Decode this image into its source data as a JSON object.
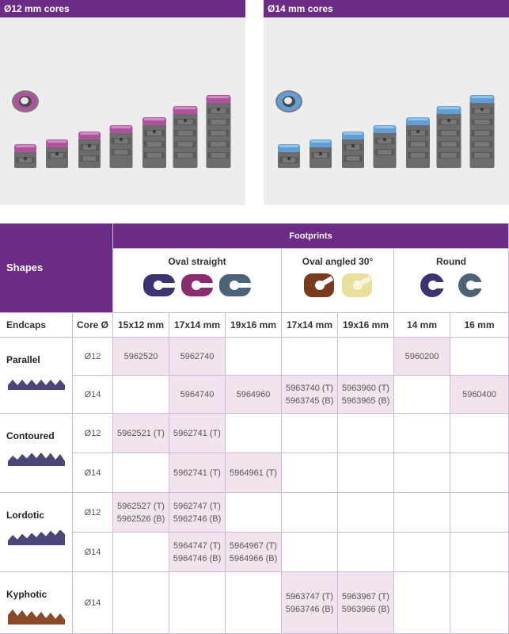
{
  "panels": {
    "left": {
      "title": "Ø12 mm cores",
      "accent": "#b0529e"
    },
    "right": {
      "title": "Ø14 mm cores",
      "accent": "#5f9ed6"
    }
  },
  "table": {
    "footprints_title": "Footprints",
    "shapes_title": "Shapes",
    "groups": [
      {
        "label": "Oval straight",
        "icons": [
          "oval-straight-dark-icon",
          "oval-straight-magenta-icon",
          "oval-straight-slate-icon"
        ]
      },
      {
        "label": "Oval angled 30°",
        "icons": [
          "oval-angled-brown-icon",
          "oval-angled-cream-icon"
        ]
      },
      {
        "label": "Round",
        "icons": [
          "round-dark-icon",
          "round-slate-icon"
        ]
      }
    ],
    "col_headers": [
      "Endcaps",
      "Core Ø",
      "15x12 mm",
      "17x14 mm",
      "19x16 mm",
      "17x14 mm",
      "19x16 mm",
      "14 mm",
      "16 mm"
    ],
    "shapes": [
      {
        "name": "Parallel",
        "color": "#4a4778"
      },
      {
        "name": "Contoured",
        "color": "#4a4778"
      },
      {
        "name": "Lordotic",
        "color": "#4a4778"
      },
      {
        "name": "Kyphotic",
        "color": "#8a4a2a"
      }
    ],
    "rows": [
      {
        "core": "Ø12",
        "cells": [
          [
            "5962520"
          ],
          [
            "5962740"
          ],
          [],
          [],
          [],
          [
            "5960200"
          ],
          []
        ]
      },
      {
        "core": "Ø14",
        "cells": [
          [],
          [
            "5964740"
          ],
          [
            "5964960"
          ],
          [
            "5963740 (T)",
            "5963745 (B)"
          ],
          [
            "5963960 (T)",
            "5963965 (B)"
          ],
          [],
          [
            "5960400"
          ]
        ]
      },
      {
        "core": "Ø12",
        "cells": [
          [
            "5962521 (T)"
          ],
          [
            "5962741 (T)"
          ],
          [],
          [],
          [],
          [],
          []
        ]
      },
      {
        "core": "Ø14",
        "cells": [
          [],
          [
            "5962741 (T)"
          ],
          [
            "5964961 (T)"
          ],
          [],
          [],
          [],
          []
        ]
      },
      {
        "core": "Ø12",
        "cells": [
          [
            "5962527 (T)",
            "5962526 (B)"
          ],
          [
            "5962747 (T)",
            "5962746 (B)"
          ],
          [],
          [],
          [],
          [],
          []
        ]
      },
      {
        "core": "Ø14",
        "cells": [
          [],
          [
            "5964747 (T)",
            "5964746 (B)"
          ],
          [
            "5964967 (T)",
            "5964966 (B)"
          ],
          [],
          [],
          [],
          []
        ]
      },
      {
        "core": "Ø14",
        "cells": [
          [],
          [],
          [],
          [
            "5963747 (T)",
            "5963746 (B)"
          ],
          [
            "5963967 (T)",
            "5963966 (B)"
          ],
          [],
          []
        ]
      }
    ]
  }
}
